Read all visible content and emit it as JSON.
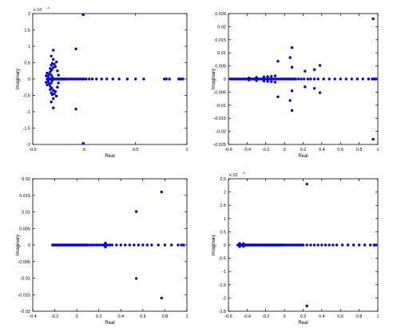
{
  "chart_data": [
    {
      "type": "scatter",
      "xlabel": "Real",
      "ylabel": "Imaginary",
      "xlim": [
        -0.5,
        1
      ],
      "ylim": [
        -2,
        2
      ],
      "xticks": [
        "-0.5",
        "0",
        "0.5",
        "1"
      ],
      "yticks": [
        "-2",
        "-1.5",
        "-1",
        "-0.5",
        "0",
        "0.5",
        "1",
        "1.5",
        "2"
      ],
      "exponent_label": "x 10",
      "exponent_power": "-3",
      "color": "#0000ee",
      "points": [
        [
          -0.36,
          0
        ],
        [
          -0.355,
          0
        ],
        [
          -0.35,
          0
        ],
        [
          -0.345,
          0
        ],
        [
          -0.34,
          0
        ],
        [
          -0.335,
          0
        ],
        [
          -0.33,
          0
        ],
        [
          -0.325,
          0
        ],
        [
          -0.32,
          0
        ],
        [
          -0.315,
          0
        ],
        [
          -0.31,
          0
        ],
        [
          -0.305,
          0
        ],
        [
          -0.3,
          0
        ],
        [
          -0.29,
          0
        ],
        [
          -0.28,
          0
        ],
        [
          -0.27,
          0
        ],
        [
          -0.26,
          0
        ],
        [
          -0.25,
          0
        ],
        [
          -0.24,
          0
        ],
        [
          -0.23,
          0
        ],
        [
          -0.22,
          0
        ],
        [
          -0.21,
          0
        ],
        [
          -0.2,
          0
        ],
        [
          -0.19,
          0
        ],
        [
          -0.18,
          0
        ],
        [
          -0.16,
          0
        ],
        [
          -0.14,
          0
        ],
        [
          -0.12,
          0
        ],
        [
          -0.1,
          0
        ],
        [
          -0.08,
          0
        ],
        [
          -0.06,
          0
        ],
        [
          -0.04,
          0
        ],
        [
          -0.02,
          0
        ],
        [
          0,
          0
        ],
        [
          0.02,
          0
        ],
        [
          0.05,
          0
        ],
        [
          0.08,
          0
        ],
        [
          0.12,
          0
        ],
        [
          0.17,
          0
        ],
        [
          0.22,
          0
        ],
        [
          0.28,
          0
        ],
        [
          0.34,
          0
        ],
        [
          0.42,
          0
        ],
        [
          0.5,
          0
        ],
        [
          0.58,
          0
        ],
        [
          0.78,
          0
        ],
        [
          0.8,
          0
        ],
        [
          0.83,
          0
        ],
        [
          0.92,
          0
        ],
        [
          0.94,
          0
        ],
        [
          0.96,
          0
        ],
        [
          -0.35,
          0.08
        ],
        [
          -0.35,
          -0.08
        ],
        [
          -0.34,
          0.15
        ],
        [
          -0.34,
          -0.15
        ],
        [
          -0.33,
          0.22
        ],
        [
          -0.33,
          -0.22
        ],
        [
          -0.32,
          0.12
        ],
        [
          -0.32,
          -0.12
        ],
        [
          -0.315,
          0.28
        ],
        [
          -0.315,
          -0.28
        ],
        [
          -0.31,
          0.05
        ],
        [
          -0.31,
          -0.05
        ],
        [
          -0.3,
          0.35
        ],
        [
          -0.3,
          -0.35
        ],
        [
          -0.33,
          0.32
        ],
        [
          -0.33,
          -0.32
        ],
        [
          -0.32,
          0.42
        ],
        [
          -0.32,
          -0.42
        ],
        [
          -0.31,
          0.48
        ],
        [
          -0.31,
          -0.48
        ],
        [
          -0.29,
          0.45
        ],
        [
          -0.29,
          -0.45
        ],
        [
          -0.3,
          0.6
        ],
        [
          -0.3,
          -0.6
        ],
        [
          -0.32,
          0.7
        ],
        [
          -0.32,
          -0.7
        ],
        [
          -0.3,
          0.88
        ],
        [
          -0.3,
          -0.88
        ],
        [
          -0.27,
          0.52
        ],
        [
          -0.27,
          -0.52
        ],
        [
          -0.28,
          0.38
        ],
        [
          -0.28,
          -0.38
        ],
        [
          -0.26,
          0.25
        ],
        [
          -0.26,
          -0.25
        ],
        [
          -0.36,
          0.18
        ],
        [
          -0.36,
          -0.18
        ],
        [
          -0.37,
          0.1
        ],
        [
          -0.37,
          -0.1
        ],
        [
          -0.25,
          0.12
        ],
        [
          -0.25,
          -0.12
        ],
        [
          -0.08,
          0.92
        ],
        [
          -0.08,
          -0.92
        ],
        [
          -0.01,
          1.97
        ],
        [
          -0.01,
          -1.97
        ]
      ]
    },
    {
      "type": "scatter",
      "xlabel": "Real",
      "ylabel": "Imaginary",
      "xlim": [
        -0.6,
        1
      ],
      "ylim": [
        -0.025,
        0.025
      ],
      "xticks": [
        "-0.6",
        "-0.4",
        "-0.2",
        "0",
        "0.2",
        "0.4",
        "0.6",
        "0.8",
        "1"
      ],
      "yticks": [
        "-0.025",
        "-0.02",
        "-0.015",
        "-0.01",
        "-0.005",
        "0",
        "0.005",
        "0.01",
        "0.015",
        "0.02",
        "0.025"
      ],
      "exponent_label": "",
      "exponent_power": "",
      "color": "#0000ee",
      "points": [
        [
          -0.58,
          0
        ],
        [
          -0.56,
          0
        ],
        [
          -0.54,
          0
        ],
        [
          -0.52,
          0
        ],
        [
          -0.5,
          0
        ],
        [
          -0.48,
          0
        ],
        [
          -0.46,
          0
        ],
        [
          -0.44,
          0
        ],
        [
          -0.42,
          0
        ],
        [
          -0.4,
          0
        ],
        [
          -0.38,
          0
        ],
        [
          -0.36,
          0
        ],
        [
          -0.34,
          0
        ],
        [
          -0.32,
          0
        ],
        [
          -0.3,
          0
        ],
        [
          -0.28,
          0
        ],
        [
          -0.26,
          0
        ],
        [
          -0.24,
          0
        ],
        [
          -0.22,
          0
        ],
        [
          -0.2,
          0
        ],
        [
          -0.18,
          0
        ],
        [
          -0.16,
          0
        ],
        [
          -0.14,
          0
        ],
        [
          -0.12,
          0
        ],
        [
          -0.1,
          0
        ],
        [
          -0.08,
          0
        ],
        [
          -0.06,
          0
        ],
        [
          -0.04,
          0
        ],
        [
          -0.02,
          0
        ],
        [
          0,
          0
        ],
        [
          0.02,
          0
        ],
        [
          0.04,
          0
        ],
        [
          0.06,
          0
        ],
        [
          0.08,
          0
        ],
        [
          0.1,
          0
        ],
        [
          0.12,
          0
        ],
        [
          0.15,
          0
        ],
        [
          0.18,
          0
        ],
        [
          0.21,
          0
        ],
        [
          0.25,
          0
        ],
        [
          0.28,
          0
        ],
        [
          0.32,
          0
        ],
        [
          0.36,
          0
        ],
        [
          0.42,
          0
        ],
        [
          0.48,
          0
        ],
        [
          0.54,
          0
        ],
        [
          0.6,
          0
        ],
        [
          0.66,
          0
        ],
        [
          0.72,
          0
        ],
        [
          0.78,
          0
        ],
        [
          0.84,
          0
        ],
        [
          0.9,
          0
        ],
        [
          0.94,
          0
        ],
        [
          0.96,
          0
        ],
        [
          0.98,
          0
        ],
        [
          -0.22,
          0.0008
        ],
        [
          -0.22,
          -0.0008
        ],
        [
          -0.18,
          0.0009
        ],
        [
          -0.18,
          -0.0009
        ],
        [
          -0.14,
          0.001
        ],
        [
          -0.14,
          -0.001
        ],
        [
          -0.1,
          0.0012
        ],
        [
          -0.1,
          -0.0012
        ],
        [
          -0.38,
          0.0004
        ],
        [
          -0.38,
          -0.0004
        ],
        [
          -0.3,
          0.0006
        ],
        [
          -0.3,
          -0.0006
        ],
        [
          -0.07,
          0.0068
        ],
        [
          -0.07,
          -0.0068
        ],
        [
          0.06,
          0.0082
        ],
        [
          0.06,
          -0.0082
        ],
        [
          0.08,
          0.012
        ],
        [
          0.08,
          -0.012
        ],
        [
          0.08,
          0.0045
        ],
        [
          0.08,
          -0.0045
        ],
        [
          0.22,
          0.003
        ],
        [
          0.22,
          -0.003
        ],
        [
          0.32,
          0.0036
        ],
        [
          0.32,
          -0.0036
        ],
        [
          0.38,
          0.0052
        ],
        [
          0.38,
          -0.0052
        ],
        [
          0.95,
          0.023
        ],
        [
          0.95,
          -0.023
        ]
      ]
    },
    {
      "type": "scatter",
      "xlabel": "Real",
      "ylabel": "Imaginary",
      "xlim": [
        -0.4,
        1
      ],
      "ylim": [
        -0.02,
        0.02
      ],
      "xticks": [
        "-0.4",
        "-0.2",
        "0",
        "0.2",
        "0.4",
        "0.6",
        "0.8",
        "1"
      ],
      "yticks": [
        "-0.02",
        "-0.015",
        "-0.01",
        "-0.005",
        "0",
        "0.005",
        "0.01",
        "0.015",
        "0.02"
      ],
      "exponent_label": "",
      "exponent_power": "",
      "color": "#0000ee",
      "points": [
        [
          -0.22,
          0
        ],
        [
          -0.21,
          0
        ],
        [
          -0.2,
          0
        ],
        [
          -0.19,
          0
        ],
        [
          -0.18,
          0
        ],
        [
          -0.17,
          0
        ],
        [
          -0.16,
          0
        ],
        [
          -0.15,
          0
        ],
        [
          -0.14,
          0
        ],
        [
          -0.13,
          0
        ],
        [
          -0.12,
          0
        ],
        [
          -0.11,
          0
        ],
        [
          -0.1,
          0
        ],
        [
          -0.09,
          0
        ],
        [
          -0.08,
          0
        ],
        [
          -0.07,
          0
        ],
        [
          -0.06,
          0
        ],
        [
          -0.05,
          0
        ],
        [
          -0.04,
          0
        ],
        [
          -0.03,
          0
        ],
        [
          -0.02,
          0
        ],
        [
          -0.01,
          0
        ],
        [
          0,
          0
        ],
        [
          0.01,
          0
        ],
        [
          0.02,
          0
        ],
        [
          0.03,
          0
        ],
        [
          0.04,
          0
        ],
        [
          0.05,
          0
        ],
        [
          0.06,
          0
        ],
        [
          0.07,
          0
        ],
        [
          0.08,
          0
        ],
        [
          0.09,
          0
        ],
        [
          0.1,
          0
        ],
        [
          0.12,
          0
        ],
        [
          0.14,
          0
        ],
        [
          0.16,
          0
        ],
        [
          0.18,
          0
        ],
        [
          0.2,
          0
        ],
        [
          0.22,
          0
        ],
        [
          0.24,
          0
        ],
        [
          0.25,
          0
        ],
        [
          0.26,
          0
        ],
        [
          0.28,
          0
        ],
        [
          0.3,
          0
        ],
        [
          0.32,
          0
        ],
        [
          0.36,
          0
        ],
        [
          0.4,
          0
        ],
        [
          0.44,
          0
        ],
        [
          0.48,
          0
        ],
        [
          0.52,
          0
        ],
        [
          0.56,
          0
        ],
        [
          0.6,
          0
        ],
        [
          0.64,
          0
        ],
        [
          0.68,
          0
        ],
        [
          0.74,
          0
        ],
        [
          0.8,
          0
        ],
        [
          0.86,
          0
        ],
        [
          0.92,
          0
        ],
        [
          0.95,
          0
        ],
        [
          0.97,
          0
        ],
        [
          0.26,
          0.0006
        ],
        [
          0.26,
          -0.0006
        ],
        [
          0.54,
          0.0101
        ],
        [
          0.54,
          -0.0101
        ],
        [
          0.77,
          0.016
        ],
        [
          0.77,
          -0.016
        ]
      ]
    },
    {
      "type": "scatter",
      "xlabel": "Real",
      "ylabel": "Imaginary",
      "xlim": [
        -0.6,
        1
      ],
      "ylim": [
        -2.5,
        2.5
      ],
      "xticks": [
        "-0.6",
        "-0.4",
        "-0.2",
        "0",
        "0.2",
        "0.4",
        "0.6",
        "0.8",
        "1"
      ],
      "yticks": [
        "-2.5",
        "-2",
        "-1.5",
        "-1",
        "-0.5",
        "0",
        "0.5",
        "1",
        "1.5",
        "2",
        "2.5"
      ],
      "exponent_label": "x 10",
      "exponent_power": "-3",
      "color": "#0000ee",
      "points": [
        [
          -0.5,
          0
        ],
        [
          -0.49,
          0
        ],
        [
          -0.48,
          0
        ],
        [
          -0.47,
          0
        ],
        [
          -0.46,
          0
        ],
        [
          -0.45,
          0
        ],
        [
          -0.44,
          0
        ],
        [
          -0.43,
          0
        ],
        [
          -0.42,
          0
        ],
        [
          -0.41,
          0
        ],
        [
          -0.4,
          0
        ],
        [
          -0.39,
          0
        ],
        [
          -0.38,
          0
        ],
        [
          -0.37,
          0
        ],
        [
          -0.36,
          0
        ],
        [
          -0.35,
          0
        ],
        [
          -0.34,
          0
        ],
        [
          -0.33,
          0
        ],
        [
          -0.32,
          0
        ],
        [
          -0.31,
          0
        ],
        [
          -0.3,
          0
        ],
        [
          -0.29,
          0
        ],
        [
          -0.28,
          0
        ],
        [
          -0.27,
          0
        ],
        [
          -0.26,
          0
        ],
        [
          -0.25,
          0
        ],
        [
          -0.24,
          0
        ],
        [
          -0.23,
          0
        ],
        [
          -0.22,
          0
        ],
        [
          -0.21,
          0
        ],
        [
          -0.2,
          0
        ],
        [
          -0.19,
          0
        ],
        [
          -0.18,
          0
        ],
        [
          -0.17,
          0
        ],
        [
          -0.16,
          0
        ],
        [
          -0.15,
          0
        ],
        [
          -0.14,
          0
        ],
        [
          -0.13,
          0
        ],
        [
          -0.12,
          0
        ],
        [
          -0.11,
          0
        ],
        [
          -0.1,
          0
        ],
        [
          -0.09,
          0
        ],
        [
          -0.08,
          0
        ],
        [
          -0.07,
          0
        ],
        [
          -0.06,
          0
        ],
        [
          -0.05,
          0
        ],
        [
          -0.04,
          0
        ],
        [
          -0.03,
          0
        ],
        [
          -0.02,
          0
        ],
        [
          -0.01,
          0
        ],
        [
          0,
          0
        ],
        [
          0.02,
          0
        ],
        [
          0.04,
          0
        ],
        [
          0.06,
          0
        ],
        [
          0.08,
          0
        ],
        [
          0.1,
          0
        ],
        [
          0.12,
          0
        ],
        [
          0.14,
          0
        ],
        [
          0.16,
          0
        ],
        [
          0.18,
          0
        ],
        [
          0.2,
          0
        ],
        [
          0.24,
          0
        ],
        [
          0.28,
          0
        ],
        [
          0.32,
          0
        ],
        [
          0.36,
          0
        ],
        [
          0.4,
          0
        ],
        [
          0.44,
          0
        ],
        [
          0.48,
          0
        ],
        [
          0.52,
          0
        ],
        [
          0.56,
          0
        ],
        [
          0.62,
          0
        ],
        [
          0.68,
          0
        ],
        [
          0.74,
          0
        ],
        [
          0.8,
          0
        ],
        [
          0.86,
          0
        ],
        [
          0.92,
          0
        ],
        [
          0.96,
          0
        ],
        [
          0.98,
          0
        ],
        [
          -0.48,
          0.06
        ],
        [
          -0.48,
          -0.06
        ],
        [
          -0.44,
          0.05
        ],
        [
          -0.44,
          -0.05
        ],
        [
          0.24,
          2.3
        ],
        [
          0.24,
          -2.3
        ]
      ]
    }
  ]
}
